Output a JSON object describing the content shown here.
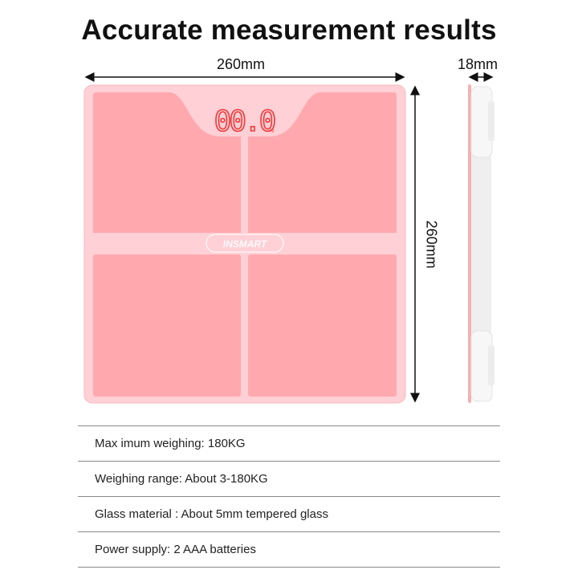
{
  "title": "Accurate measurement results",
  "dimensions": {
    "width": "260mm",
    "length": "260mm",
    "thickness": "18mm"
  },
  "product": {
    "brand": "INSMART",
    "display": "00.0",
    "unit": "kg",
    "body_color": "#ffa9ae",
    "frame_color": "#ffd0d6",
    "display_color": "#f0393a"
  },
  "specs": [
    {
      "text": "Max imum weighing: 180KG"
    },
    {
      "text": "Weighing range: About 3-180KG"
    },
    {
      "text": "Glass material : About 5mm tempered glass"
    },
    {
      "text": "Power supply: 2 AAA batteries"
    }
  ]
}
